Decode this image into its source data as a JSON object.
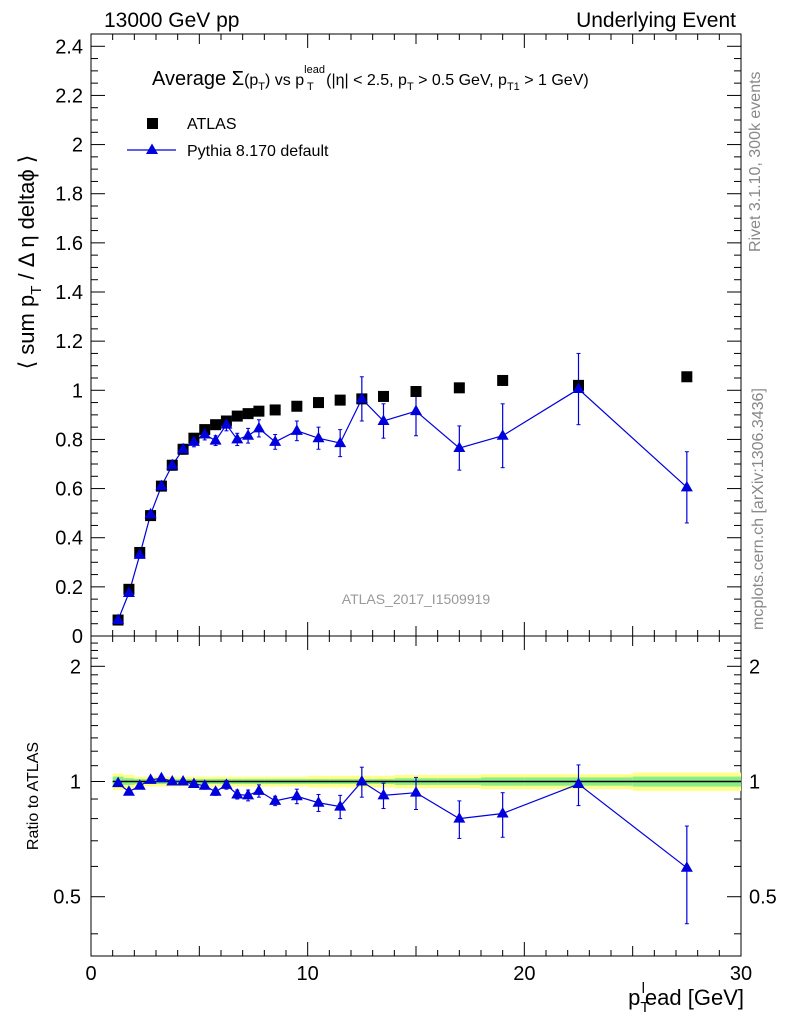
{
  "header": {
    "left": "13000 GeV pp",
    "right": "Underlying Event"
  },
  "side_labels": {
    "rivet": "Rivet 3.1.10,  300k events",
    "mcplots": "mcplots.cern.ch [arXiv:1306.3436]"
  },
  "watermark": "ATLAS_2017_I1509919",
  "chart_data": [
    {
      "type": "scatter",
      "title": "Average Σ(pT) vs pT^lead (|η| < 2.5, pT > 0.5 GeV, pT1 > 1 GeV)",
      "title_parts": {
        "prefix": "Average ",
        "sigma": "Σ",
        "p": "(p",
        "sub_t": "T",
        "vs": ") vs p",
        "sup_lead": "lead",
        "sub_t2": "T",
        "cuts": " (|η| < 2.5, p",
        "sub_t3": "T",
        "cuts2": " > 0.5 GeV, p",
        "sub_t1": "T1",
        "cuts3": " > 1 GeV)"
      },
      "ylabel": "⟨ sum p_T / Δ η deltaϕ ⟩",
      "ylabel_parts": {
        "a": "⟨ sum p",
        "sub": "T",
        "b": " / Δ η deltaϕ ⟩"
      },
      "xlim": [
        0,
        30
      ],
      "ylim": [
        0,
        2.45
      ],
      "yticks": [
        0,
        0.2,
        0.4,
        0.6,
        0.8,
        1,
        1.2,
        1.4,
        1.6,
        1.8,
        2,
        2.2,
        2.4
      ],
      "ytick_labels": [
        "0",
        "0.2",
        "0.4",
        "0.6",
        "0.8",
        "1",
        "1.2",
        "1.4",
        "1.6",
        "1.8",
        "2",
        "2.2",
        "2.4"
      ],
      "legend": {
        "position": "top-left",
        "entries": [
          "ATLAS",
          "Pythia 8.170 default"
        ]
      },
      "series": [
        {
          "name": "ATLAS",
          "marker": "square",
          "color": "#000000",
          "x": [
            1.25,
            1.75,
            2.25,
            2.75,
            3.25,
            3.75,
            4.25,
            4.75,
            5.25,
            5.75,
            6.25,
            6.75,
            7.25,
            7.75,
            8.5,
            9.5,
            10.5,
            11.5,
            12.5,
            13.5,
            15.0,
            17.0,
            19.0,
            22.5,
            27.5
          ],
          "y": [
            0.065,
            0.19,
            0.34,
            0.49,
            0.61,
            0.695,
            0.76,
            0.805,
            0.84,
            0.86,
            0.875,
            0.895,
            0.905,
            0.915,
            0.92,
            0.935,
            0.95,
            0.96,
            0.965,
            0.975,
            0.995,
            1.01,
            1.04,
            1.02,
            1.055
          ]
        },
        {
          "name": "Pythia 8.170 default",
          "marker": "triangle",
          "color": "#0000dd",
          "x": [
            1.25,
            1.75,
            2.25,
            2.75,
            3.25,
            3.75,
            4.25,
            4.75,
            5.25,
            5.75,
            6.25,
            6.75,
            7.25,
            7.75,
            8.5,
            9.5,
            10.5,
            11.5,
            12.5,
            13.5,
            15.0,
            17.0,
            19.0,
            22.5,
            27.5
          ],
          "y": [
            0.065,
            0.175,
            0.33,
            0.495,
            0.61,
            0.695,
            0.76,
            0.79,
            0.82,
            0.795,
            0.86,
            0.8,
            0.815,
            0.845,
            0.79,
            0.835,
            0.805,
            0.785,
            0.965,
            0.875,
            0.915,
            0.765,
            0.815,
            1.005,
            0.605
          ],
          "yerr": [
            0.005,
            0.01,
            0.012,
            0.015,
            0.02,
            0.02,
            0.02,
            0.02,
            0.022,
            0.02,
            0.025,
            0.025,
            0.03,
            0.035,
            0.03,
            0.04,
            0.045,
            0.055,
            0.09,
            0.07,
            0.1,
            0.09,
            0.13,
            0.145,
            0.145
          ]
        }
      ]
    },
    {
      "type": "scatter",
      "ylabel": "Ratio to ATLAS",
      "xlabel": "p_T^lead [GeV]",
      "xlabel_parts": {
        "p": "p",
        "sub": "T",
        "sup": "l",
        "rest": "ead [GeV]"
      },
      "xlim": [
        0,
        30
      ],
      "ylim": [
        0.35,
        2.4
      ],
      "ytick_labels": [
        "0.5",
        "1",
        "2"
      ],
      "yticks": [
        0.5,
        1,
        2
      ],
      "xticks": [
        0,
        10,
        20,
        30
      ],
      "xtick_labels": [
        "0",
        "10",
        "20",
        "30"
      ],
      "band_bins": [
        [
          1,
          1.5
        ],
        [
          1.5,
          2
        ],
        [
          2,
          2.5
        ],
        [
          2.5,
          3
        ],
        [
          3,
          3.5
        ],
        [
          3.5,
          4
        ],
        [
          4,
          4.5
        ],
        [
          4.5,
          5
        ],
        [
          5,
          5.5
        ],
        [
          5.5,
          6
        ],
        [
          6,
          6.5
        ],
        [
          6.5,
          7
        ],
        [
          7,
          7.5
        ],
        [
          7.5,
          8
        ],
        [
          8,
          9
        ],
        [
          9,
          10
        ],
        [
          10,
          11
        ],
        [
          11,
          12
        ],
        [
          12,
          13
        ],
        [
          13,
          14
        ],
        [
          14,
          16
        ],
        [
          16,
          18
        ],
        [
          18,
          20
        ],
        [
          20,
          25
        ],
        [
          25,
          30
        ]
      ],
      "band_inner": [
        0.03,
        0.02,
        0.015,
        0.015,
        0.015,
        0.015,
        0.015,
        0.015,
        0.015,
        0.015,
        0.015,
        0.015,
        0.015,
        0.015,
        0.015,
        0.015,
        0.015,
        0.015,
        0.015,
        0.015,
        0.02,
        0.02,
        0.025,
        0.025,
        0.03
      ],
      "band_outer": [
        0.05,
        0.04,
        0.03,
        0.03,
        0.03,
        0.03,
        0.03,
        0.03,
        0.03,
        0.03,
        0.03,
        0.03,
        0.03,
        0.03,
        0.03,
        0.03,
        0.035,
        0.035,
        0.035,
        0.035,
        0.04,
        0.04,
        0.045,
        0.045,
        0.055
      ],
      "series": [
        {
          "name": "Pythia 8.170 default",
          "marker": "triangle",
          "color": "#0000dd",
          "x": [
            1.25,
            1.75,
            2.25,
            2.75,
            3.25,
            3.75,
            4.25,
            4.75,
            5.25,
            5.75,
            6.25,
            6.75,
            7.25,
            7.75,
            8.5,
            9.5,
            10.5,
            11.5,
            12.5,
            13.5,
            15.0,
            17.0,
            19.0,
            22.5,
            27.5
          ],
          "y": [
            0.99,
            0.94,
            0.975,
            1.01,
            1.02,
            1.0,
            1.0,
            0.985,
            0.975,
            0.94,
            0.98,
            0.925,
            0.92,
            0.945,
            0.89,
            0.915,
            0.88,
            0.86,
            1.0,
            0.92,
            0.935,
            0.8,
            0.825,
            0.985,
            0.595
          ],
          "yerr": [
            0.01,
            0.015,
            0.015,
            0.015,
            0.015,
            0.015,
            0.015,
            0.015,
            0.02,
            0.02,
            0.025,
            0.025,
            0.03,
            0.035,
            0.025,
            0.04,
            0.045,
            0.06,
            0.09,
            0.07,
            0.09,
            0.09,
            0.11,
            0.12,
            0.17
          ]
        }
      ]
    }
  ]
}
